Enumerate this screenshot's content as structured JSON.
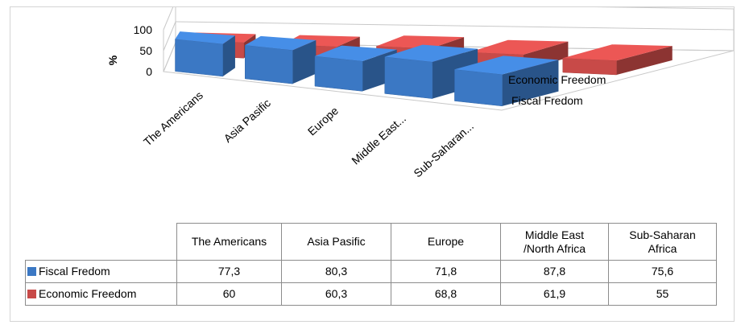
{
  "chart_data": {
    "type": "bar",
    "three_d": true,
    "categories": [
      "The Americans",
      "Asia Pasific",
      "Europe",
      "Middle East...",
      "Sub-Saharan..."
    ],
    "table_categories": [
      "The Americans",
      "Asia Pasific",
      "Europe",
      "Middle East\n/North Africa",
      "Sub-Saharan\nAfrica"
    ],
    "series": [
      {
        "name": "Fiscal Fredom",
        "color": "#3b78c4",
        "values": [
          77.3,
          80.3,
          71.8,
          87.8,
          75.6
        ],
        "value_labels": [
          "77,3",
          "80,3",
          "71,8",
          "87,8",
          "75,6"
        ]
      },
      {
        "name": "Economic Freedom",
        "color": "#c84a48",
        "values": [
          60,
          60.3,
          68.8,
          61.9,
          55
        ],
        "value_labels": [
          "60",
          "60,3",
          "68,8",
          "61,9",
          "55"
        ]
      }
    ],
    "ylabel": "%",
    "yticks": [
      "100",
      "50",
      "0"
    ],
    "ylim": [
      0,
      100
    ],
    "legend": "data table",
    "grid": true
  }
}
